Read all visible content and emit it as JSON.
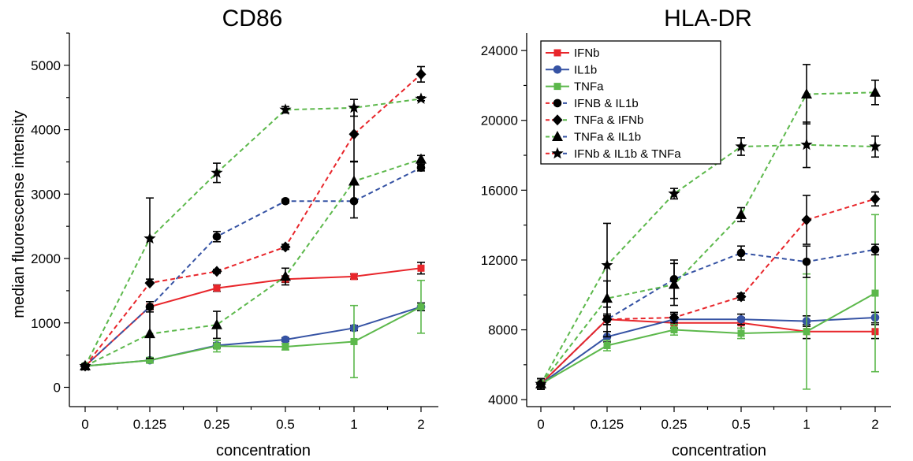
{
  "chart_data": [
    {
      "type": "line",
      "title": "CD86",
      "xlabel": "concentration",
      "ylabel": "median fluorescense intensity",
      "categories": [
        "0",
        "0.125",
        "0.25",
        "0.5",
        "1",
        "2"
      ],
      "ylim": [
        -300,
        5500
      ],
      "yticks": [
        0,
        1000,
        2000,
        3000,
        4000,
        5000
      ],
      "series": [
        {
          "name": "IFNb",
          "color": "#e8262b",
          "dash": false,
          "marker": "square",
          "values": [
            330,
            1250,
            1540,
            1680,
            1720,
            1850
          ],
          "err": [
            30,
            80,
            50,
            50,
            40,
            90
          ]
        },
        {
          "name": "IL1b",
          "color": "#3653a4",
          "dash": false,
          "marker": "circle",
          "values": [
            330,
            420,
            650,
            740,
            920,
            1250
          ],
          "err": [
            30,
            40,
            40,
            30,
            40,
            60
          ]
        },
        {
          "name": "TNFa",
          "color": "#5cb84b",
          "dash": false,
          "marker": "square",
          "values": [
            330,
            420,
            640,
            630,
            710,
            1250
          ],
          "err": [
            30,
            40,
            90,
            50,
            560,
            410
          ]
        },
        {
          "name": "IFNB & IL1b",
          "color": "#3653a4",
          "dash": true,
          "marker": "circle",
          "values": [
            330,
            1250,
            2340,
            2890,
            2890,
            3410
          ],
          "err": [
            30,
            0,
            80,
            30,
            260,
            50
          ]
        },
        {
          "name": "TNFa & IFNb",
          "color": "#e8262b",
          "dash": true,
          "marker": "diamond",
          "values": [
            330,
            1620,
            1800,
            2180,
            3930,
            4860
          ],
          "err": [
            30,
            0,
            30,
            40,
            420,
            120
          ]
        },
        {
          "name": "TNFa & IL1b",
          "color": "#5cb84b",
          "dash": true,
          "marker": "triangle",
          "values": [
            330,
            830,
            970,
            1720,
            3200,
            3540
          ],
          "err": [
            30,
            380,
            210,
            130,
            300,
            60
          ]
        },
        {
          "name": "IFNb & IL1b & TNFa",
          "color": "#5cb84b",
          "dash": true,
          "marker": "star",
          "values": [
            330,
            2310,
            3330,
            4310,
            4340,
            4480
          ],
          "err": [
            30,
            630,
            150,
            50,
            130,
            30
          ]
        }
      ]
    },
    {
      "type": "line",
      "title": "HLA-DR",
      "xlabel": "concentration",
      "ylabel": "",
      "categories": [
        "0",
        "0.125",
        "0.25",
        "0.5",
        "1",
        "2"
      ],
      "ylim": [
        3600,
        25000
      ],
      "yticks": [
        4000,
        8000,
        12000,
        16000,
        20000,
        24000
      ],
      "series": [
        {
          "name": "IFNb",
          "color": "#e8262b",
          "dash": false,
          "marker": "square",
          "values": [
            4900,
            8600,
            8400,
            8400,
            7900,
            7900
          ],
          "err": [
            300,
            300,
            300,
            300,
            400,
            400
          ]
        },
        {
          "name": "IL1b",
          "color": "#3653a4",
          "dash": false,
          "marker": "circle",
          "values": [
            4900,
            7600,
            8600,
            8600,
            8500,
            8700
          ],
          "err": [
            300,
            300,
            300,
            300,
            300,
            300
          ]
        },
        {
          "name": "TNFa",
          "color": "#5cb84b",
          "dash": false,
          "marker": "square",
          "values": [
            4900,
            7100,
            8000,
            7800,
            7900,
            10100
          ],
          "err": [
            300,
            300,
            300,
            300,
            3300,
            4500
          ]
        },
        {
          "name": "IFNB & IL1b",
          "color": "#3653a4",
          "dash": true,
          "marker": "circle",
          "values": [
            4900,
            8600,
            10900,
            12400,
            11900,
            12600
          ],
          "err": [
            300,
            1000,
            1100,
            400,
            900,
            300
          ]
        },
        {
          "name": "TNFa & IFNb",
          "color": "#e8262b",
          "dash": true,
          "marker": "diamond",
          "values": [
            4900,
            8600,
            8700,
            9900,
            14300,
            15500
          ],
          "err": [
            300,
            300,
            300,
            200,
            1400,
            400
          ]
        },
        {
          "name": "TNFa & IL1b",
          "color": "#5cb84b",
          "dash": true,
          "marker": "triangle",
          "values": [
            4900,
            9800,
            10600,
            14600,
            21500,
            21600
          ],
          "err": [
            300,
            1000,
            1200,
            400,
            1700,
            700
          ]
        },
        {
          "name": "IFNb & IL1b & TNFa",
          "color": "#5cb84b",
          "dash": true,
          "marker": "star",
          "values": [
            4900,
            11700,
            15800,
            18500,
            18600,
            18500
          ],
          "err": [
            300,
            2400,
            300,
            500,
            1300,
            600
          ]
        }
      ]
    }
  ],
  "legend": {
    "position": "top-left of right panel",
    "entries": [
      {
        "label": "IFNb",
        "color": "#e8262b",
        "color2": "#e8262b",
        "dash": false,
        "marker": "square"
      },
      {
        "label": "IL1b",
        "color": "#3653a4",
        "color2": "#3653a4",
        "dash": false,
        "marker": "circle"
      },
      {
        "label": "TNFa",
        "color": "#5cb84b",
        "color2": "#5cb84b",
        "dash": false,
        "marker": "square"
      },
      {
        "label": "IFNB & IL1b",
        "color": "#e8262b",
        "color2": "#3653a4",
        "dash": true,
        "marker": "circle"
      },
      {
        "label": "TNFa & IFNb",
        "color": "#e8262b",
        "color2": "#5cb84b",
        "dash": true,
        "marker": "diamond"
      },
      {
        "label": "TNFa & IL1b",
        "color": "#5cb84b",
        "color2": "#3653a4",
        "dash": true,
        "marker": "triangle"
      },
      {
        "label": "IFNb & IL1b & TNFa",
        "color": "#e8262b",
        "color2": "#3653a4",
        "dash": true,
        "marker": "star"
      }
    ]
  }
}
